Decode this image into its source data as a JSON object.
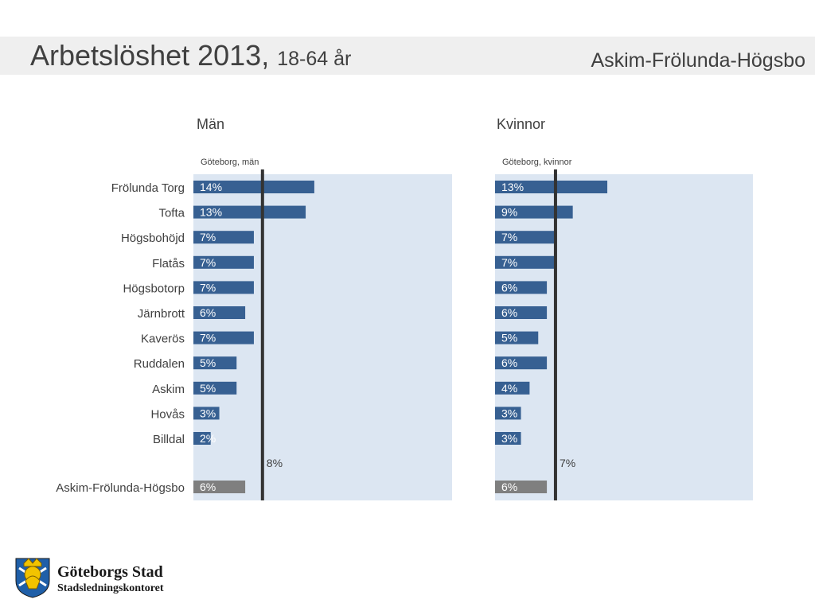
{
  "header": {
    "title": "Arbetslöshet 2013,",
    "subtitle": "18-64 år",
    "region": "Askim-Frölunda-Högsbo"
  },
  "colors": {
    "panel_bg": "#dce6f2",
    "bar": "#376092",
    "total_bar": "#7f7f7f",
    "reference_line": "#333333",
    "header_bg": "#efefef"
  },
  "logo": {
    "name": "Göteborgs Stad",
    "department": "Stadsledningskontoret",
    "icon": "goteborg-crest-icon"
  },
  "chart_data": [
    {
      "type": "bar",
      "orientation": "horizontal",
      "title": "Män",
      "reference_label": "Göteborg, män",
      "categories": [
        "Frölunda Torg",
        "Tofta",
        "Högsbohöjd",
        "Flatås",
        "Högsbotorp",
        "Järnbrott",
        "Kaverös",
        "Ruddalen",
        "Askim",
        "Hovås",
        "Billdal"
      ],
      "values": [
        14,
        13,
        7,
        7,
        7,
        6,
        7,
        5,
        5,
        3,
        2
      ],
      "value_labels": [
        "14%",
        "13%",
        "7%",
        "7%",
        "7%",
        "6%",
        "7%",
        "5%",
        "5%",
        "3%",
        "2%"
      ],
      "reference_value": 8,
      "reference_value_label": "8%",
      "total": {
        "label": "Askim-Frölunda-Högsbo",
        "value": 6,
        "value_label": "6%"
      },
      "xlim": [
        0,
        30
      ],
      "grid": false
    },
    {
      "type": "bar",
      "orientation": "horizontal",
      "title": "Kvinnor",
      "reference_label": "Göteborg, kvinnor",
      "categories": [
        "Frölunda Torg",
        "Tofta",
        "Högsbohöjd",
        "Flatås",
        "Högsbotorp",
        "Järnbrott",
        "Kaverös",
        "Ruddalen",
        "Askim",
        "Hovås",
        "Billdal"
      ],
      "values": [
        13,
        9,
        7,
        7,
        6,
        6,
        5,
        6,
        4,
        3,
        3
      ],
      "value_labels": [
        "13%",
        "9%",
        "7%",
        "7%",
        "6%",
        "6%",
        "5%",
        "6%",
        "4%",
        "3%",
        "3%"
      ],
      "reference_value": 7,
      "reference_value_label": "7%",
      "total": {
        "label": "Askim-Frölunda-Högsbo",
        "value": 6,
        "value_label": "6%"
      },
      "xlim": [
        0,
        30
      ],
      "grid": false
    }
  ]
}
